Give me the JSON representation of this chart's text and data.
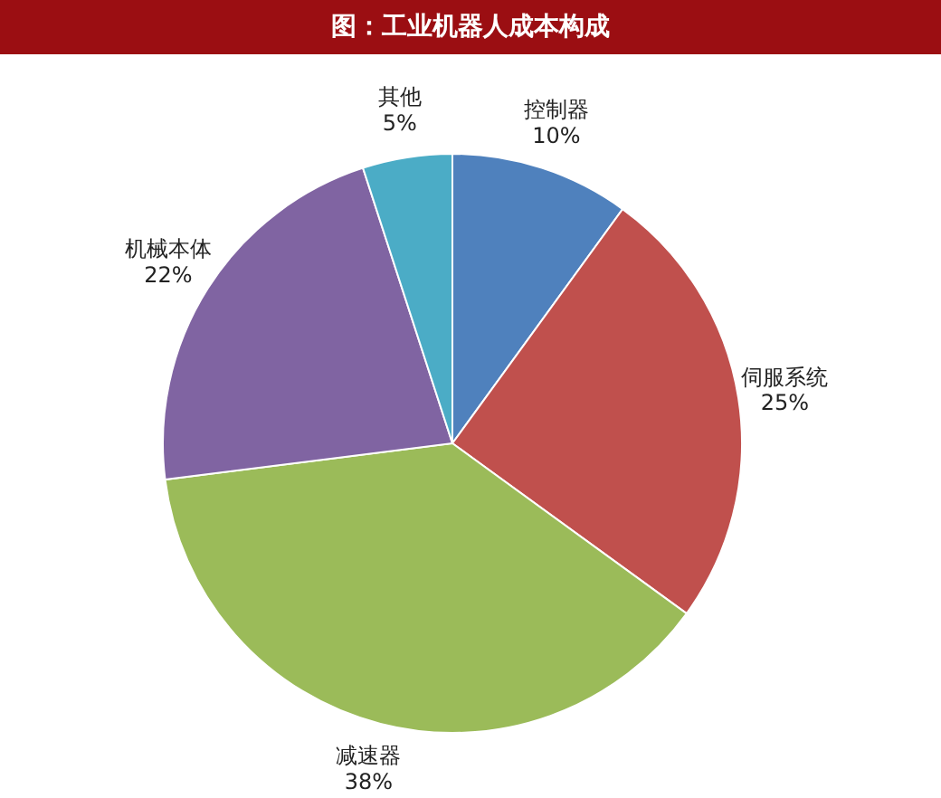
{
  "chart_data": {
    "type": "pie",
    "title": "图：工业机器人成本构成",
    "categories": [
      "控制器",
      "伺服系统",
      "减速器",
      "机械本体",
      "其他"
    ],
    "values": [
      10,
      25,
      38,
      22,
      5
    ],
    "value_labels": [
      "10%",
      "25%",
      "38%",
      "22%",
      "5%"
    ],
    "colors": [
      "#4f81bd",
      "#c0504d",
      "#9bbb59",
      "#8064a2",
      "#4bacc6"
    ],
    "legend": false
  }
}
